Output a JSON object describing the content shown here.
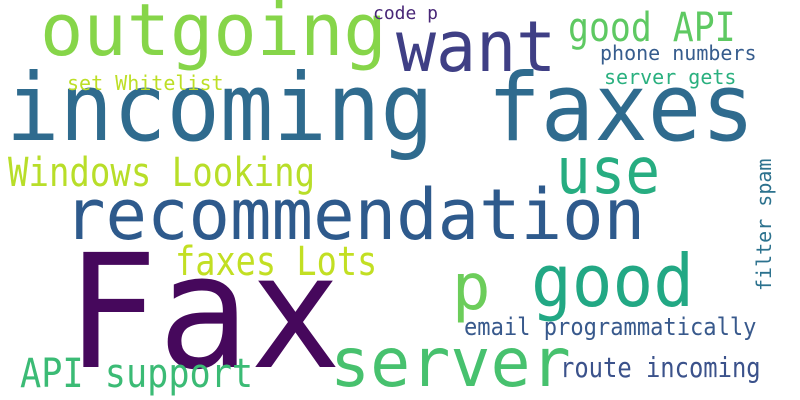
{
  "words": [
    {
      "text": "incoming faxes",
      "color": "#2f6b8e"
    },
    {
      "text": "Fax",
      "color": "#46085c"
    },
    {
      "text": "recommendation",
      "color": "#2e5a8c"
    },
    {
      "text": "outgoing",
      "color": "#86d549"
    },
    {
      "text": "want",
      "color": "#3f3f85"
    },
    {
      "text": "server",
      "color": "#47c16e"
    },
    {
      "text": "use",
      "color": "#27ad81"
    },
    {
      "text": "good",
      "color": "#22a884"
    },
    {
      "text": "p",
      "color": "#6ccd5a"
    },
    {
      "text": "good API",
      "color": "#5ec962"
    },
    {
      "text": "API support",
      "color": "#3bbb75"
    },
    {
      "text": "Windows Looking",
      "color": "#b8de29"
    },
    {
      "text": "faxes Lots",
      "color": "#c2df23"
    },
    {
      "text": "route incoming",
      "color": "#3b528b"
    },
    {
      "text": "email programmatically",
      "color": "#38598c"
    },
    {
      "text": "phone numbers",
      "color": "#365c8d"
    },
    {
      "text": "server gets",
      "color": "#2ab07f"
    },
    {
      "text": "set Whitelist",
      "color": "#bddf26"
    },
    {
      "text": "code p",
      "color": "#482677"
    },
    {
      "text": "filter spam",
      "color": "#2c728e"
    }
  ]
}
